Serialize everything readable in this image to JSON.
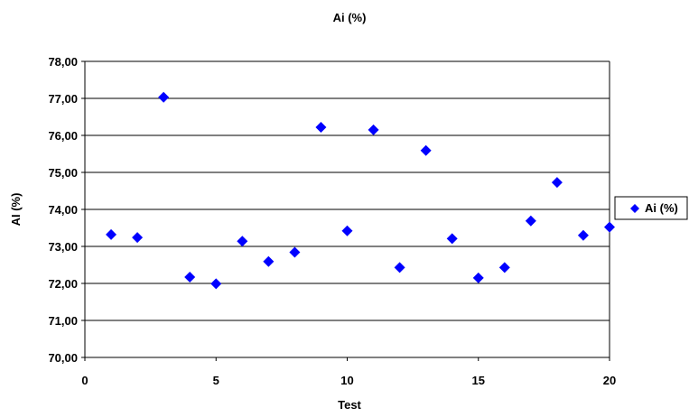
{
  "chart_data": {
    "type": "scatter",
    "title": "Ai (%)",
    "xlabel": "Test",
    "ylabel": "AI (%)",
    "xlim": [
      0,
      20
    ],
    "ylim": [
      70,
      78
    ],
    "x_ticks": [
      "0",
      "5",
      "10",
      "15",
      "20"
    ],
    "y_ticks": [
      "70,00",
      "71,00",
      "72,00",
      "73,00",
      "74,00",
      "75,00",
      "76,00",
      "77,00",
      "78,00"
    ],
    "grid": "horizontal",
    "legend_position": "right",
    "series": [
      {
        "name": "Ai (%)",
        "color": "#0000FF",
        "marker": "diamond",
        "x": [
          1,
          2,
          3,
          4,
          5,
          6,
          7,
          8,
          9,
          10,
          11,
          12,
          13,
          14,
          15,
          16,
          17,
          18,
          19,
          20
        ],
        "y": [
          73.32,
          73.24,
          77.03,
          72.17,
          71.99,
          73.14,
          72.59,
          72.84,
          76.22,
          73.42,
          76.15,
          72.43,
          75.59,
          73.21,
          72.15,
          72.43,
          73.69,
          74.73,
          73.3,
          73.52
        ]
      }
    ]
  }
}
